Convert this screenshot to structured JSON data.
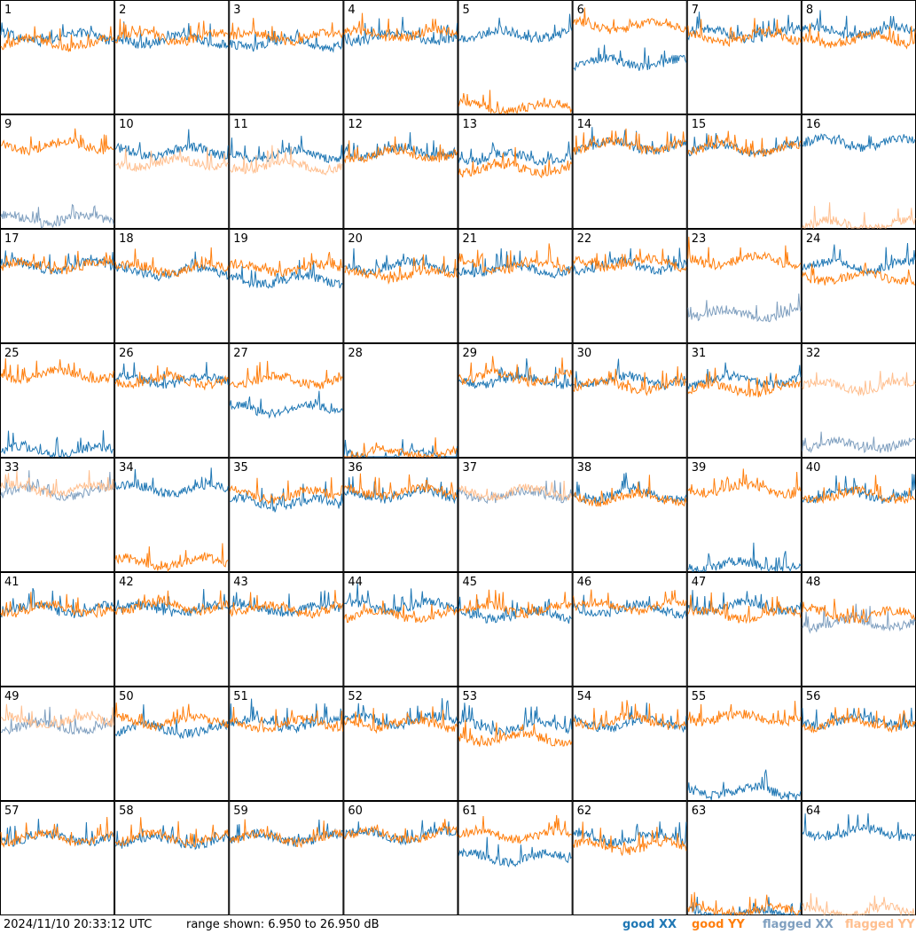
{
  "footer": {
    "timestamp": "2024/11/10 20:33:12 UTC",
    "range_text": "range shown: 6.950 to 26.950 dB"
  },
  "legend": [
    {
      "label": "good XX",
      "color": "#1f77b4"
    },
    {
      "label": "good YY",
      "color": "#ff7f0e"
    },
    {
      "label": "flagged XX",
      "color": "#7f9fbf"
    },
    {
      "label": "flagged YY",
      "color": "#ffbf8f"
    }
  ],
  "chart_data": {
    "type": "line",
    "layout": "small-multiples grid of 64 spectra",
    "ylim": [
      6.95,
      26.95
    ],
    "grid": false,
    "legend_position": "bottom-right",
    "panels": [
      {
        "id": 1,
        "xx": "good",
        "yy": "good",
        "xx_level": 20.5,
        "yy_level": 19.5
      },
      {
        "id": 2,
        "xx": "good",
        "yy": "good",
        "xx_level": 20.0,
        "yy_level": 20.5
      },
      {
        "id": 3,
        "xx": "good",
        "yy": "good",
        "xx_level": 19.5,
        "yy_level": 20.5
      },
      {
        "id": 4,
        "xx": "good",
        "yy": "good",
        "xx_level": 20.5,
        "yy_level": 21.0
      },
      {
        "id": 5,
        "xx": "good",
        "yy": "good",
        "xx_level": 21.0,
        "yy_level": 8.0
      },
      {
        "id": 6,
        "xx": "good",
        "yy": "good",
        "xx_level": 16.0,
        "yy_level": 22.5
      },
      {
        "id": 7,
        "xx": "good",
        "yy": "good",
        "xx_level": 21.0,
        "yy_level": 20.5
      },
      {
        "id": 8,
        "xx": "good",
        "yy": "good",
        "xx_level": 21.5,
        "yy_level": 20.0
      },
      {
        "id": 9,
        "xx": "flagged",
        "yy": "good",
        "xx_level": 8.5,
        "yy_level": 21.5
      },
      {
        "id": 10,
        "xx": "good",
        "yy": "flagged",
        "xx_level": 20.5,
        "yy_level": 18.5
      },
      {
        "id": 11,
        "xx": "good",
        "yy": "flagged",
        "xx_level": 20.0,
        "yy_level": 18.0
      },
      {
        "id": 12,
        "xx": "good",
        "yy": "good",
        "xx_level": 20.5,
        "yy_level": 20.0
      },
      {
        "id": 13,
        "xx": "good",
        "yy": "good",
        "xx_level": 19.5,
        "yy_level": 17.5
      },
      {
        "id": 14,
        "xx": "good",
        "yy": "good",
        "xx_level": 21.5,
        "yy_level": 21.5
      },
      {
        "id": 15,
        "xx": "good",
        "yy": "good",
        "xx_level": 21.0,
        "yy_level": 21.0
      },
      {
        "id": 16,
        "xx": "good",
        "yy": "flagged",
        "xx_level": 22.0,
        "yy_level": 7.5
      },
      {
        "id": 17,
        "xx": "good",
        "yy": "good",
        "xx_level": 20.5,
        "yy_level": 20.5
      },
      {
        "id": 18,
        "xx": "good",
        "yy": "good",
        "xx_level": 19.5,
        "yy_level": 20.0
      },
      {
        "id": 19,
        "xx": "good",
        "yy": "good",
        "xx_level": 18.0,
        "yy_level": 20.0
      },
      {
        "id": 20,
        "xx": "good",
        "yy": "good",
        "xx_level": 20.5,
        "yy_level": 19.0
      },
      {
        "id": 21,
        "xx": "good",
        "yy": "good",
        "xx_level": 20.0,
        "yy_level": 20.5
      },
      {
        "id": 22,
        "xx": "good",
        "yy": "good",
        "xx_level": 20.5,
        "yy_level": 21.0
      },
      {
        "id": 23,
        "xx": "flagged",
        "yy": "good",
        "xx_level": 12.0,
        "yy_level": 21.5
      },
      {
        "id": 24,
        "xx": "good",
        "yy": "good",
        "xx_level": 20.5,
        "yy_level": 18.5
      },
      {
        "id": 25,
        "xx": "good",
        "yy": "good",
        "xx_level": 8.0,
        "yy_level": 21.5
      },
      {
        "id": 26,
        "xx": "good",
        "yy": "good",
        "xx_level": 20.5,
        "yy_level": 20.5
      },
      {
        "id": 27,
        "xx": "good",
        "yy": "good",
        "xx_level": 15.5,
        "yy_level": 20.5
      },
      {
        "id": 28,
        "xx": "good",
        "yy": "good",
        "xx_level": 7.0,
        "yy_level": 7.5
      },
      {
        "id": 29,
        "xx": "good",
        "yy": "good",
        "xx_level": 20.5,
        "yy_level": 21.0
      },
      {
        "id": 30,
        "xx": "good",
        "yy": "good",
        "xx_level": 20.5,
        "yy_level": 19.5
      },
      {
        "id": 31,
        "xx": "good",
        "yy": "good",
        "xx_level": 20.5,
        "yy_level": 19.0
      },
      {
        "id": 32,
        "xx": "flagged",
        "yy": "flagged",
        "xx_level": 9.0,
        "yy_level": 19.5
      },
      {
        "id": 33,
        "xx": "flagged",
        "yy": "flagged",
        "xx_level": 21.0,
        "yy_level": 21.5
      },
      {
        "id": 34,
        "xx": "good",
        "yy": "good",
        "xx_level": 21.5,
        "yy_level": 8.5
      },
      {
        "id": 35,
        "xx": "good",
        "yy": "good",
        "xx_level": 19.0,
        "yy_level": 20.5
      },
      {
        "id": 36,
        "xx": "good",
        "yy": "good",
        "xx_level": 20.5,
        "yy_level": 21.0
      },
      {
        "id": 37,
        "xx": "flagged",
        "yy": "flagged",
        "xx_level": 20.5,
        "yy_level": 21.0
      },
      {
        "id": 38,
        "xx": "good",
        "yy": "good",
        "xx_level": 20.5,
        "yy_level": 20.0
      },
      {
        "id": 39,
        "xx": "good",
        "yy": "good",
        "xx_level": 8.0,
        "yy_level": 21.5
      },
      {
        "id": 40,
        "xx": "good",
        "yy": "good",
        "xx_level": 20.5,
        "yy_level": 20.5
      },
      {
        "id": 41,
        "xx": "good",
        "yy": "good",
        "xx_level": 20.5,
        "yy_level": 20.5
      },
      {
        "id": 42,
        "xx": "good",
        "yy": "good",
        "xx_level": 20.5,
        "yy_level": 21.0
      },
      {
        "id": 43,
        "xx": "good",
        "yy": "good",
        "xx_level": 20.5,
        "yy_level": 20.5
      },
      {
        "id": 44,
        "xx": "good",
        "yy": "good",
        "xx_level": 21.0,
        "yy_level": 19.5
      },
      {
        "id": 45,
        "xx": "good",
        "yy": "good",
        "xx_level": 19.5,
        "yy_level": 20.5
      },
      {
        "id": 46,
        "xx": "good",
        "yy": "good",
        "xx_level": 20.5,
        "yy_level": 21.0
      },
      {
        "id": 47,
        "xx": "good",
        "yy": "good",
        "xx_level": 21.0,
        "yy_level": 19.5
      },
      {
        "id": 48,
        "xx": "flagged",
        "yy": "good",
        "xx_level": 18.0,
        "yy_level": 19.5
      },
      {
        "id": 49,
        "xx": "flagged",
        "yy": "flagged",
        "xx_level": 20.0,
        "yy_level": 21.0
      },
      {
        "id": 50,
        "xx": "good",
        "yy": "good",
        "xx_level": 19.5,
        "yy_level": 21.0
      },
      {
        "id": 51,
        "xx": "good",
        "yy": "good",
        "xx_level": 20.5,
        "yy_level": 20.5
      },
      {
        "id": 52,
        "xx": "good",
        "yy": "good",
        "xx_level": 21.0,
        "yy_level": 20.5
      },
      {
        "id": 53,
        "xx": "good",
        "yy": "good",
        "xx_level": 20.0,
        "yy_level": 18.0
      },
      {
        "id": 54,
        "xx": "good",
        "yy": "good",
        "xx_level": 20.5,
        "yy_level": 21.0
      },
      {
        "id": 55,
        "xx": "good",
        "yy": "good",
        "xx_level": 8.5,
        "yy_level": 21.5
      },
      {
        "id": 56,
        "xx": "good",
        "yy": "good",
        "xx_level": 21.0,
        "yy_level": 20.5
      },
      {
        "id": 57,
        "xx": "good",
        "yy": "good",
        "xx_level": 20.5,
        "yy_level": 20.5
      },
      {
        "id": 58,
        "xx": "good",
        "yy": "good",
        "xx_level": 20.0,
        "yy_level": 20.5
      },
      {
        "id": 59,
        "xx": "good",
        "yy": "good",
        "xx_level": 20.5,
        "yy_level": 20.5
      },
      {
        "id": 60,
        "xx": "good",
        "yy": "good",
        "xx_level": 21.0,
        "yy_level": 21.0
      },
      {
        "id": 61,
        "xx": "good",
        "yy": "good",
        "xx_level": 17.0,
        "yy_level": 21.0
      },
      {
        "id": 62,
        "xx": "good",
        "yy": "good",
        "xx_level": 20.5,
        "yy_level": 19.0
      },
      {
        "id": 63,
        "xx": "good",
        "yy": "good",
        "xx_level": 7.0,
        "yy_level": 7.5
      },
      {
        "id": 64,
        "xx": "good",
        "yy": "flagged",
        "xx_level": 21.5,
        "yy_level": 7.5
      }
    ]
  }
}
